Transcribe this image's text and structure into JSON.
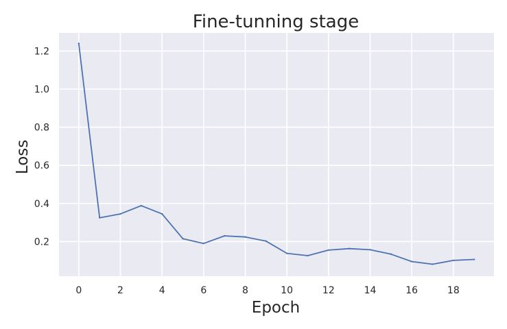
{
  "chart_data": {
    "type": "line",
    "title": "Fine-tunning stage",
    "xlabel": "Epoch",
    "ylabel": "Loss",
    "xlim": [
      -0.95,
      19.95
    ],
    "ylim": [
      0.018,
      1.295
    ],
    "grid": true,
    "x_ticks": [
      "0",
      "2",
      "4",
      "6",
      "8",
      "10",
      "12",
      "14",
      "16",
      "18"
    ],
    "y_ticks": [
      "0.2",
      "0.4",
      "0.6",
      "0.8",
      "1.0",
      "1.2"
    ],
    "x_tick_values": [
      0,
      2,
      4,
      6,
      8,
      10,
      12,
      14,
      16,
      18
    ],
    "y_tick_values": [
      0.2,
      0.4,
      0.6,
      0.8,
      1.0,
      1.2
    ],
    "x": [
      0,
      1,
      2,
      3,
      4,
      5,
      6,
      7,
      8,
      9,
      10,
      11,
      12,
      13,
      14,
      15,
      16,
      17,
      18,
      19
    ],
    "series": [
      {
        "color": "#4c72b0",
        "values": [
          1.24,
          0.325,
          0.345,
          0.388,
          0.345,
          0.215,
          0.19,
          0.23,
          0.224,
          0.202,
          0.138,
          0.126,
          0.155,
          0.163,
          0.157,
          0.134,
          0.095,
          0.081,
          0.101,
          0.106
        ]
      }
    ],
    "colors": {
      "plot_background": "#eaeaf2",
      "grid": "#ffffff",
      "text": "#262626"
    }
  }
}
